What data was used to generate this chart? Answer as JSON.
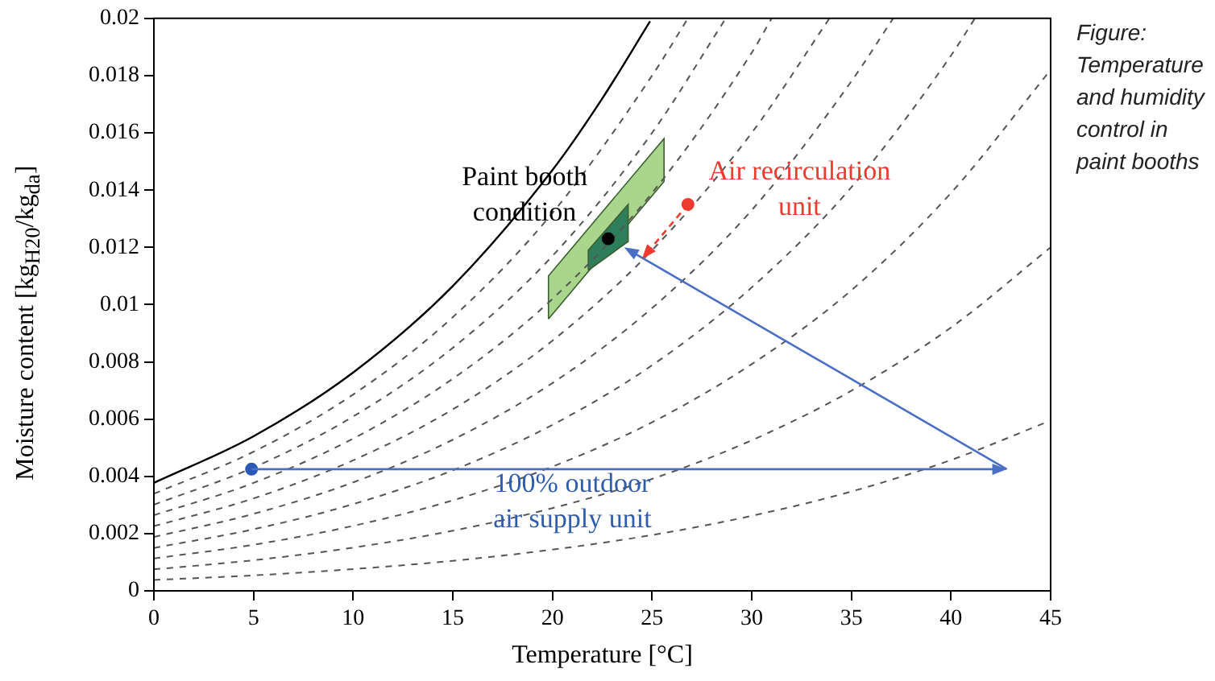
{
  "chart_data": {
    "type": "line",
    "xlabel": "Temperature [°C]",
    "ylabel": "Moisture content [kg$_{H20}$/kg$_{da}$]",
    "xlim": [
      0,
      45
    ],
    "xticks": [
      0,
      5,
      10,
      15,
      20,
      25,
      30,
      35,
      40,
      45
    ],
    "ylim": [
      0,
      0.02
    ],
    "yticks": [
      0,
      0.002,
      0.004,
      0.006,
      0.008,
      0.01,
      0.012,
      0.014,
      0.016,
      0.018,
      0.02
    ],
    "grid": false,
    "legend": false,
    "series": [
      {
        "type": "area",
        "color": "#a9d68c",
        "x": [
          19.8,
          19.8,
          25.6,
          25.6,
          19.8
        ],
        "values": [
          0.0095,
          0.011,
          0.0158,
          0.0143,
          0.0095
        ]
      },
      {
        "type": "area",
        "color": "#2e7d5b",
        "x": [
          21.8,
          21.8,
          23.8,
          23.8,
          21.8
        ],
        "values": [
          0.0112,
          0.0119,
          0.0135,
          0.0122,
          0.0112
        ]
      },
      {
        "color": "#000000",
        "line_style": "solid",
        "x": [
          0,
          5,
          10,
          15,
          20,
          22.5,
          24.9
        ],
        "values": [
          0.00377,
          0.0054,
          0.00763,
          0.01065,
          0.0147,
          0.0172,
          0.0199
        ]
      },
      {
        "color": "#555555",
        "line_style": "dashed",
        "x": [
          0,
          5,
          10,
          15,
          20,
          25,
          26.8
        ],
        "values": [
          0.00339,
          0.00486,
          0.00686,
          0.00956,
          0.0132,
          0.018,
          0.02
        ]
      },
      {
        "color": "#555555",
        "line_style": "dashed",
        "x": [
          0,
          5,
          10,
          15,
          20,
          25,
          28.7
        ],
        "values": [
          0.00301,
          0.00431,
          0.00609,
          0.00849,
          0.0117,
          0.016,
          0.02
        ]
      },
      {
        "color": "#555555",
        "line_style": "dashed",
        "x": [
          0,
          5,
          10,
          15,
          20,
          25,
          30,
          31
        ],
        "values": [
          0.00264,
          0.00377,
          0.00532,
          0.00741,
          0.0102,
          0.0139,
          0.0188,
          0.02
        ]
      },
      {
        "color": "#555555",
        "line_style": "dashed",
        "x": [
          0,
          5,
          10,
          15,
          20,
          25,
          30,
          33.9
        ],
        "values": [
          0.00226,
          0.00323,
          0.00456,
          0.00634,
          0.00874,
          0.0119,
          0.016,
          0.02
        ]
      },
      {
        "color": "#555555",
        "line_style": "dashed",
        "x": [
          0,
          5,
          10,
          15,
          20,
          25,
          30,
          35,
          37.1
        ],
        "values": [
          0.00188,
          0.00269,
          0.00379,
          0.00528,
          0.00726,
          0.00988,
          0.0133,
          0.0178,
          0.02
        ]
      },
      {
        "color": "#555555",
        "line_style": "dashed",
        "x": [
          0,
          5,
          10,
          15,
          20,
          25,
          30,
          35,
          40,
          41.2
        ],
        "values": [
          0.0015,
          0.00215,
          0.00303,
          0.00421,
          0.0058,
          0.00788,
          0.0106,
          0.0141,
          0.0187,
          0.02
        ]
      },
      {
        "color": "#555555",
        "line_style": "dashed",
        "x": [
          0,
          5,
          10,
          15,
          20,
          25,
          30,
          35,
          40,
          45
        ],
        "values": [
          0.00113,
          0.00161,
          0.00227,
          0.00316,
          0.00434,
          0.00589,
          0.00792,
          0.0105,
          0.0139,
          0.0182
        ]
      },
      {
        "color": "#555555",
        "line_style": "dashed",
        "x": [
          0,
          5,
          10,
          15,
          20,
          25,
          30,
          35,
          40,
          45
        ],
        "values": [
          0.00075,
          0.00107,
          0.00151,
          0.0021,
          0.00289,
          0.00391,
          0.00526,
          0.00699,
          0.0092,
          0.012
        ]
      },
      {
        "color": "#555555",
        "line_style": "dashed",
        "x": [
          0,
          5,
          10,
          15,
          20,
          25,
          30,
          35,
          40,
          45
        ],
        "values": [
          0.00038,
          0.00054,
          0.00076,
          0.00105,
          0.00144,
          0.00195,
          0.00262,
          0.00347,
          0.00457,
          0.00595
        ]
      },
      {
        "type": "scatter",
        "color": "#2a59b5",
        "marker": "circle",
        "x": [
          4.9
        ],
        "values": [
          0.00425
        ]
      },
      {
        "type": "scatter",
        "color": "#ee3a2f",
        "marker": "circle",
        "x": [
          26.8
        ],
        "values": [
          0.0135
        ]
      },
      {
        "type": "scatter",
        "color": "#000000",
        "marker": "circle",
        "x": [
          22.8
        ],
        "values": [
          0.0123
        ]
      }
    ],
    "annotations": [
      {
        "text": "Paint booth condition",
        "x": 18.6,
        "y": 0.0138
      },
      "Air recirculation unit",
      {
        "text": "100% outdoor air supply unit",
        "x": 21,
        "y": 0.0031
      },
      "Figure: Temperature and humidity control in paint booths"
    ]
  }
}
